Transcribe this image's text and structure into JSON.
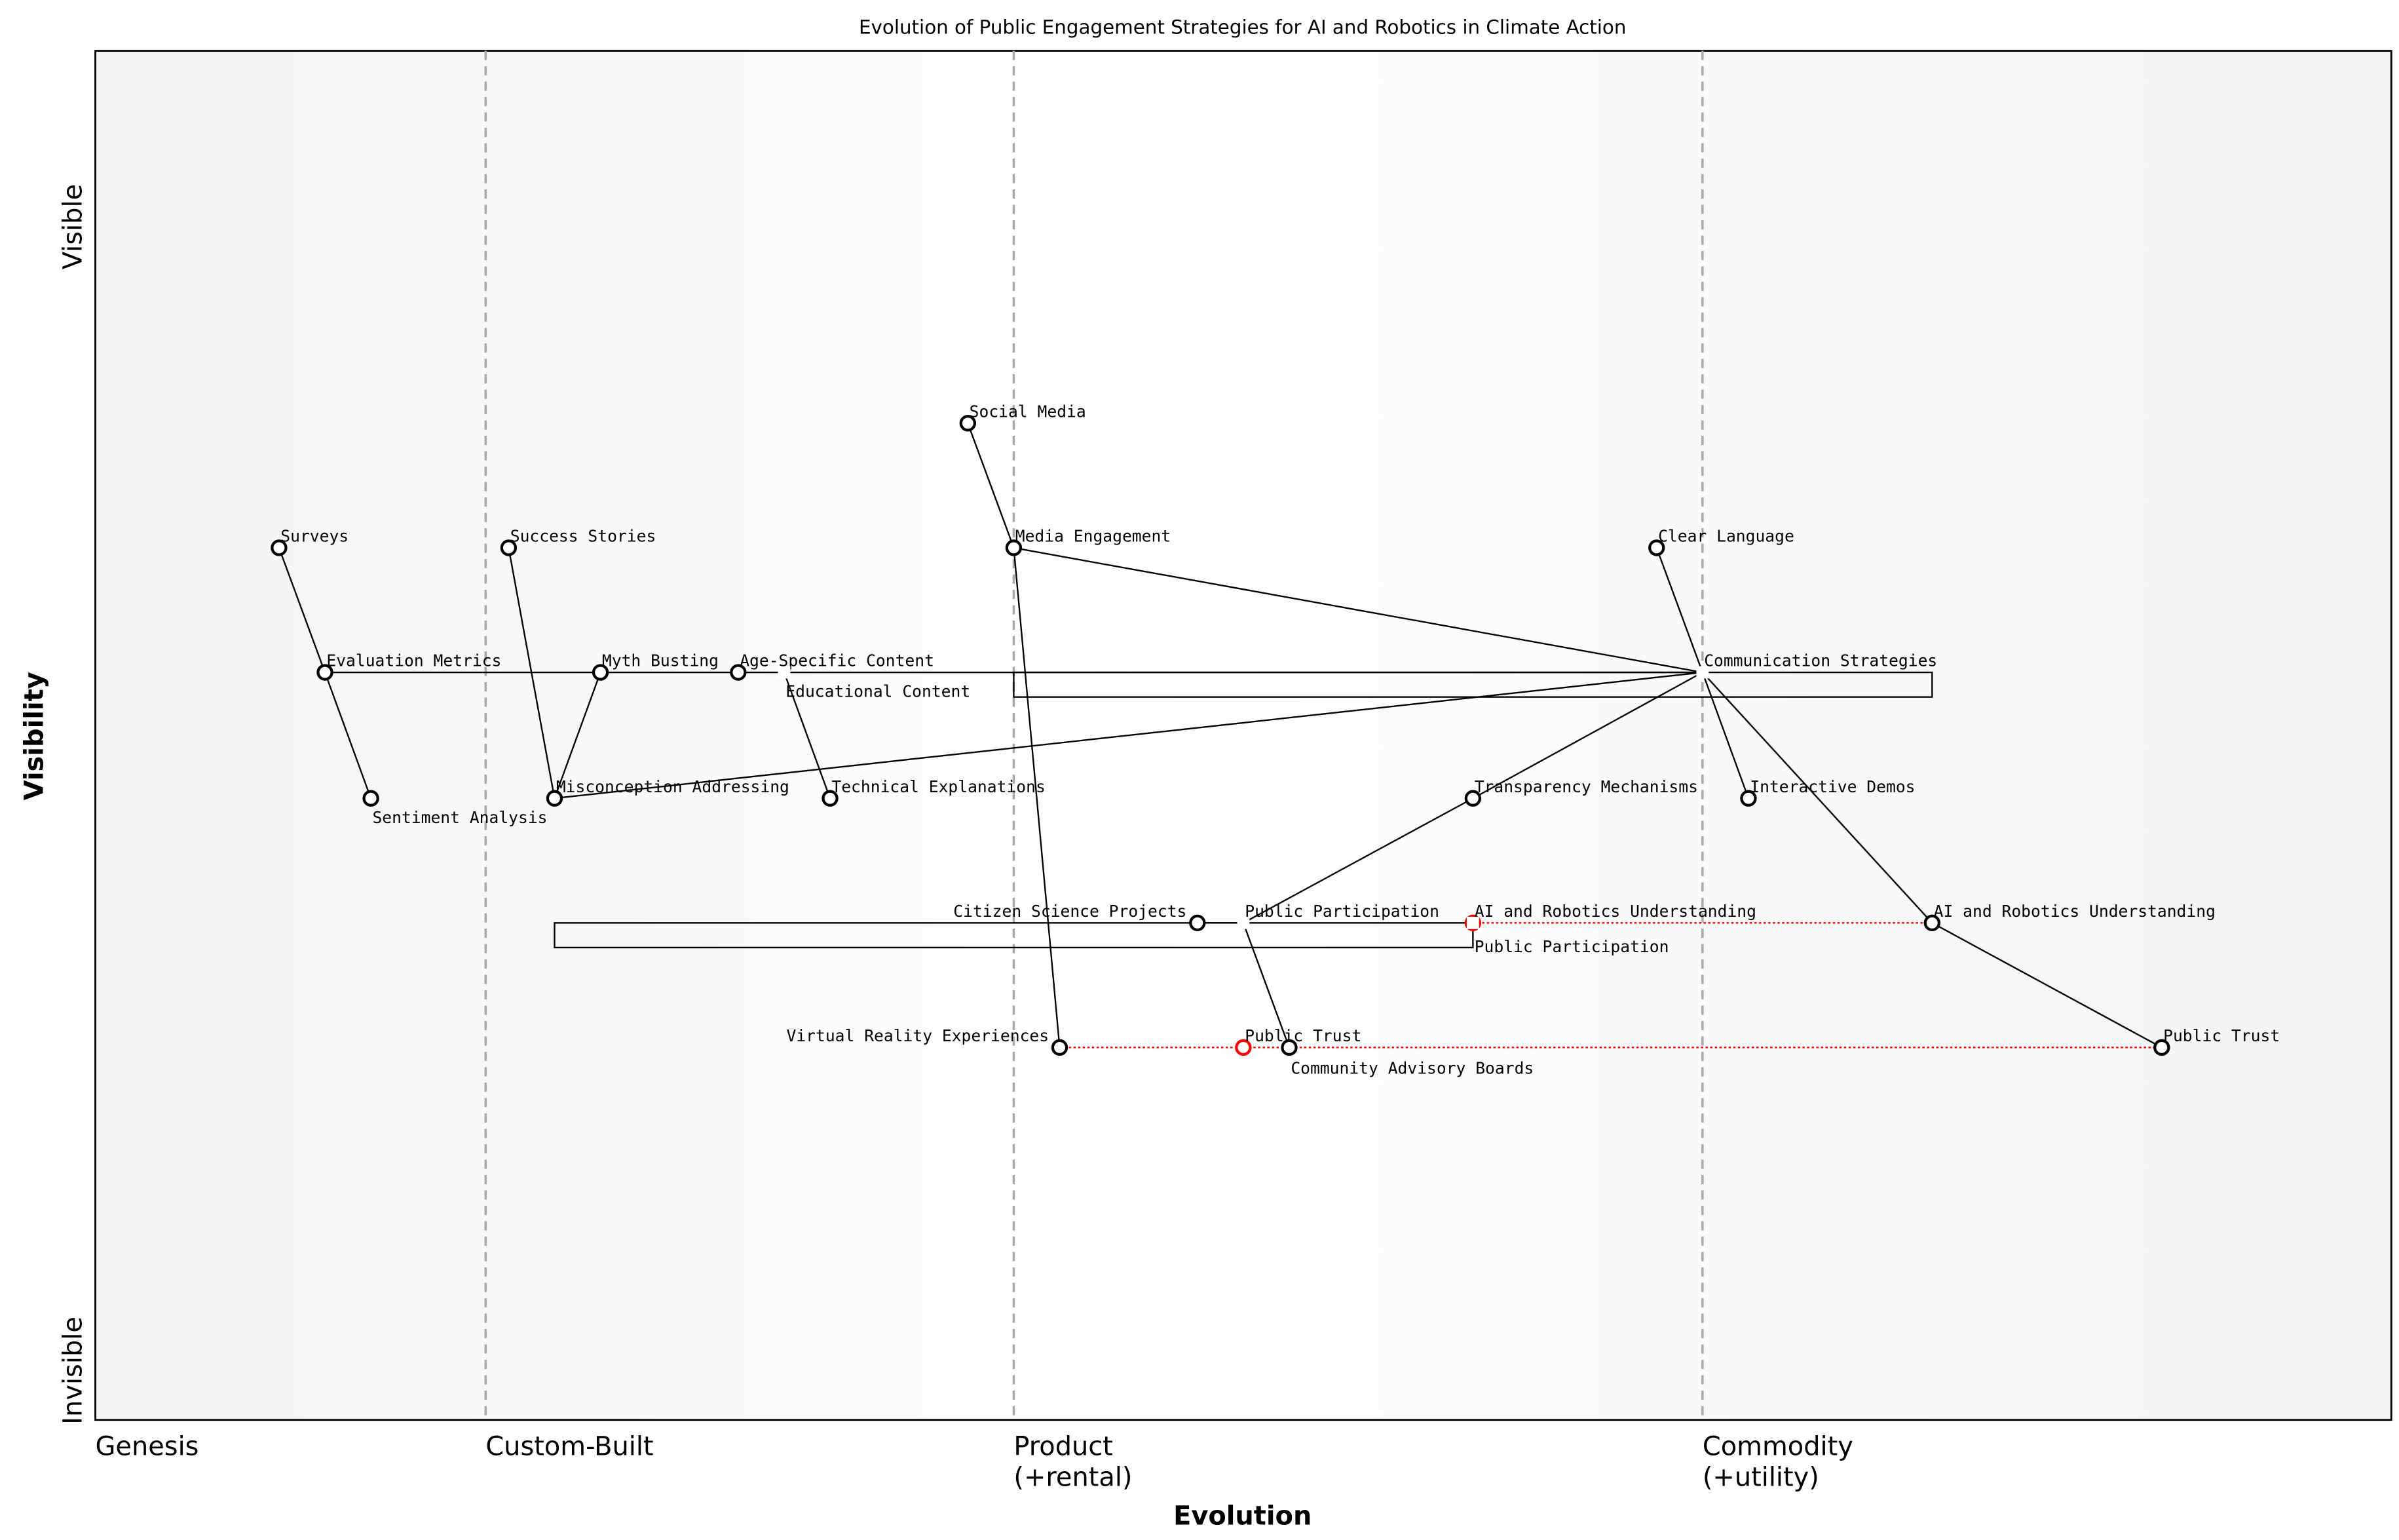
{
  "title": "Evolution of Public Engagement Strategies for AI and Robotics in Climate Action",
  "x_axis_label": "Evolution",
  "y_axis_label": "Visibility",
  "y_ticks": {
    "top": "Visible",
    "bottom": "Invisible"
  },
  "stages": [
    {
      "label": "Genesis",
      "line2": "",
      "at": 0.0
    },
    {
      "label": "Custom-Built",
      "line2": "",
      "at": 0.17
    },
    {
      "label": "Product",
      "line2": "(+rental)",
      "at": 0.4
    },
    {
      "label": "Commodity",
      "line2": "(+utility)",
      "at": 0.7
    }
  ],
  "colors": {
    "node": "#000000",
    "evolve": "#ff0000",
    "stage_line": "#aaaaaa"
  },
  "components": [
    {
      "id": "surveys",
      "name": "Surveys",
      "evolution": 0.08,
      "visibility": 0.637,
      "marker": true
    },
    {
      "id": "eval",
      "name": "Evaluation Metrics",
      "evolution": 0.1,
      "visibility": 0.546,
      "marker": true
    },
    {
      "id": "sentiment",
      "name": "Sentiment Analysis",
      "evolution": 0.12,
      "visibility": 0.454,
      "marker": true
    },
    {
      "id": "success",
      "name": "Success Stories",
      "evolution": 0.18,
      "visibility": 0.637,
      "marker": true
    },
    {
      "id": "misconc",
      "name": "Misconception Addressing",
      "evolution": 0.2,
      "visibility": 0.454,
      "marker": true
    },
    {
      "id": "myth",
      "name": "Myth Busting",
      "evolution": 0.22,
      "visibility": 0.546,
      "marker": true
    },
    {
      "id": "age",
      "name": "Age-Specific Content",
      "evolution": 0.28,
      "visibility": 0.546,
      "marker": true
    },
    {
      "id": "edu",
      "name": "Educational Content",
      "evolution": 0.3,
      "visibility": 0.546,
      "marker": false
    },
    {
      "id": "tech",
      "name": "Technical Explanations",
      "evolution": 0.32,
      "visibility": 0.454,
      "marker": true
    },
    {
      "id": "social",
      "name": "Social Media",
      "evolution": 0.38,
      "visibility": 0.728,
      "marker": true
    },
    {
      "id": "media",
      "name": "Media Engagement",
      "evolution": 0.4,
      "visibility": 0.637,
      "marker": true
    },
    {
      "id": "vr",
      "name": "Virtual Reality Experiences",
      "evolution": 0.42,
      "visibility": 0.272,
      "marker": true
    },
    {
      "id": "citizen",
      "name": "Citizen Science Projects",
      "evolution": 0.48,
      "visibility": 0.363,
      "marker": true
    },
    {
      "id": "pubpart",
      "name": "Public Participation",
      "evolution": 0.5,
      "visibility": 0.363,
      "marker": false
    },
    {
      "id": "trust_old",
      "name": "Public Trust",
      "evolution": 0.5,
      "visibility": 0.272,
      "marker": true,
      "inertia": true
    },
    {
      "id": "community",
      "name": "Community Advisory Boards",
      "evolution": 0.52,
      "visibility": 0.272,
      "marker": true
    },
    {
      "id": "transp",
      "name": "Transparency Mechanisms",
      "evolution": 0.6,
      "visibility": 0.454,
      "marker": true
    },
    {
      "id": "airu_old",
      "name": "AI and Robotics Understanding",
      "evolution": 0.6,
      "visibility": 0.363,
      "marker": true,
      "inertia": true
    },
    {
      "id": "pubpart2",
      "name": "Public Participation",
      "evolution": 0.6,
      "visibility": 0.363,
      "marker": false
    },
    {
      "id": "clear",
      "name": "Clear Language",
      "evolution": 0.68,
      "visibility": 0.637,
      "marker": true
    },
    {
      "id": "comm",
      "name": "Communication Strategies",
      "evolution": 0.7,
      "visibility": 0.546,
      "marker": false
    },
    {
      "id": "demos",
      "name": "Interactive Demos",
      "evolution": 0.72,
      "visibility": 0.454,
      "marker": true
    },
    {
      "id": "airu",
      "name": "AI and Robotics Understanding",
      "evolution": 0.8,
      "visibility": 0.363,
      "marker": true
    },
    {
      "id": "trust",
      "name": "Public Trust",
      "evolution": 0.9,
      "visibility": 0.272,
      "marker": true
    }
  ],
  "links": [
    [
      "surveys",
      "eval"
    ],
    [
      "eval",
      "sentiment"
    ],
    [
      "eval",
      "myth"
    ],
    [
      "myth",
      "age"
    ],
    [
      "age",
      "comm"
    ],
    [
      "success",
      "misconc"
    ],
    [
      "misconc",
      "myth"
    ],
    [
      "misconc",
      "comm"
    ],
    [
      "edu",
      "tech"
    ],
    [
      "social",
      "media"
    ],
    [
      "media",
      "comm"
    ],
    [
      "media",
      "vr"
    ],
    [
      "comm",
      "clear"
    ],
    [
      "comm",
      "transp"
    ],
    [
      "transp",
      "pubpart"
    ],
    [
      "comm",
      "demos"
    ],
    [
      "comm",
      "airu"
    ],
    [
      "airu",
      "trust"
    ],
    [
      "citizen",
      "pubpart"
    ],
    [
      "pubpart",
      "community"
    ]
  ],
  "evolve_links": [
    [
      "airu_old",
      "airu"
    ],
    [
      "vr",
      "trust"
    ]
  ],
  "boxes": [
    {
      "from": [
        0.4,
        0.546
      ],
      "to": [
        0.8,
        0.528
      ]
    },
    {
      "from": [
        0.2,
        0.363
      ],
      "to": [
        0.6,
        0.345
      ]
    }
  ]
}
